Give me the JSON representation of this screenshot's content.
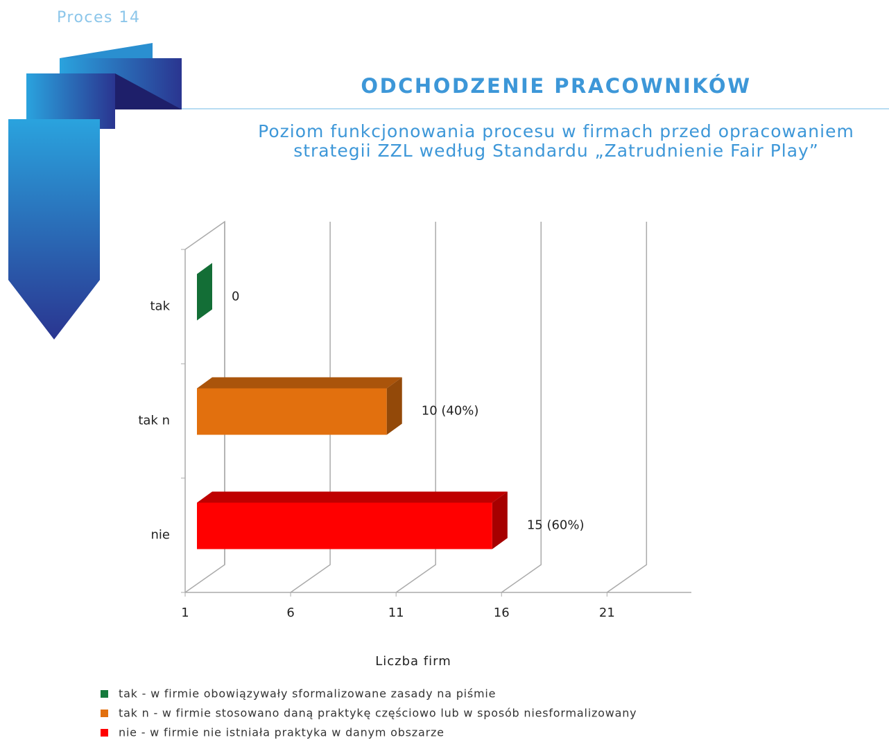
{
  "header": {
    "process": "Proces 14",
    "title": "ODCHODZENIE PRACOWNIKÓW"
  },
  "chart_data": {
    "type": "bar",
    "orientation": "horizontal",
    "subtitle": [
      "Poziom funkcjonowania procesu w firmach przed opracowaniem",
      "strategii ZZL według Standardu „Zatrudnienie Fair Play”"
    ],
    "categories": [
      "tak",
      "tak n",
      "nie"
    ],
    "values": [
      0,
      10,
      15
    ],
    "value_labels": [
      "0",
      "10 (40%)",
      "15 (60%)"
    ],
    "colors": [
      "#157a3c",
      "#e2700e",
      "#ff0000"
    ],
    "xlim": [
      1,
      25
    ],
    "xticks": [
      1,
      6,
      11,
      16,
      21
    ],
    "xlabel": "Liczba firm",
    "legend": [
      "tak - w firmie obowiązywały sformalizowane zasady na piśmie",
      "tak n - w firmie stosowano daną praktykę częściowo lub w sposób niesformalizowany",
      "nie - w firmie nie istniała praktyka w danym obszarze"
    ]
  }
}
